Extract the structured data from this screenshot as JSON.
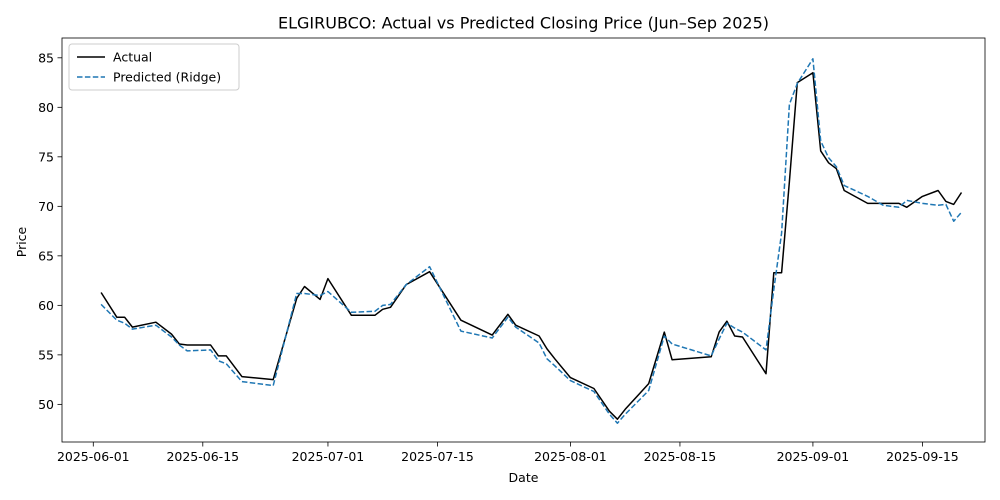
{
  "chart_data": {
    "type": "line",
    "title": "ELGIRUBCO: Actual vs Predicted Closing Price (Jun–Sep 2025)",
    "xlabel": "Date",
    "ylabel": "Price",
    "x_range": [
      "2025-05-28",
      "2025-09-23"
    ],
    "ylim": [
      46.2,
      87.0
    ],
    "x_ticks": [
      "2025-06-01",
      "2025-06-15",
      "2025-07-01",
      "2025-07-15",
      "2025-08-01",
      "2025-08-15",
      "2025-09-01",
      "2025-09-15"
    ],
    "y_ticks": [
      50,
      55,
      60,
      65,
      70,
      75,
      80,
      85
    ],
    "grid": false,
    "legend_position": "top-left",
    "series": [
      {
        "name": "Actual",
        "color": "#000000",
        "style": "solid",
        "points": [
          [
            "2025-06-02",
            61.3
          ],
          [
            "2025-06-04",
            58.8
          ],
          [
            "2025-06-05",
            58.8
          ],
          [
            "2025-06-06",
            57.8
          ],
          [
            "2025-06-09",
            58.3
          ],
          [
            "2025-06-11",
            57.1
          ],
          [
            "2025-06-12",
            56.1
          ],
          [
            "2025-06-13",
            56.0
          ],
          [
            "2025-06-16",
            56.0
          ],
          [
            "2025-06-17",
            54.9
          ],
          [
            "2025-06-18",
            54.9
          ],
          [
            "2025-06-20",
            52.8
          ],
          [
            "2025-06-24",
            52.5
          ],
          [
            "2025-06-27",
            60.7
          ],
          [
            "2025-06-28",
            61.9
          ],
          [
            "2025-06-30",
            60.6
          ],
          [
            "2025-07-01",
            62.7
          ],
          [
            "2025-07-04",
            59.0
          ],
          [
            "2025-07-07",
            59.0
          ],
          [
            "2025-07-08",
            59.6
          ],
          [
            "2025-07-09",
            59.8
          ],
          [
            "2025-07-11",
            62.1
          ],
          [
            "2025-07-14",
            63.4
          ],
          [
            "2025-07-18",
            58.5
          ],
          [
            "2025-07-22",
            57.0
          ],
          [
            "2025-07-24",
            59.1
          ],
          [
            "2025-07-25",
            58.0
          ],
          [
            "2025-07-28",
            56.9
          ],
          [
            "2025-07-29",
            55.6
          ],
          [
            "2025-07-30",
            54.6
          ],
          [
            "2025-08-01",
            52.7
          ],
          [
            "2025-08-04",
            51.6
          ],
          [
            "2025-08-06",
            49.3
          ],
          [
            "2025-08-07",
            48.5
          ],
          [
            "2025-08-08",
            49.5
          ],
          [
            "2025-08-11",
            52.1
          ],
          [
            "2025-08-13",
            57.3
          ],
          [
            "2025-08-14",
            54.5
          ],
          [
            "2025-08-19",
            54.8
          ],
          [
            "2025-08-20",
            57.3
          ],
          [
            "2025-08-21",
            58.4
          ],
          [
            "2025-08-22",
            56.9
          ],
          [
            "2025-08-23",
            56.8
          ],
          [
            "2025-08-26",
            53.1
          ],
          [
            "2025-08-27",
            63.3
          ],
          [
            "2025-08-28",
            63.3
          ],
          [
            "2025-08-29",
            72.5
          ],
          [
            "2025-08-30",
            82.5
          ],
          [
            "2025-09-01",
            83.5
          ],
          [
            "2025-09-02",
            75.6
          ],
          [
            "2025-09-03",
            74.4
          ],
          [
            "2025-09-04",
            73.8
          ],
          [
            "2025-09-05",
            71.6
          ],
          [
            "2025-09-08",
            70.3
          ],
          [
            "2025-09-10",
            70.3
          ],
          [
            "2025-09-12",
            70.3
          ],
          [
            "2025-09-13",
            69.9
          ],
          [
            "2025-09-15",
            71.0
          ],
          [
            "2025-09-17",
            71.6
          ],
          [
            "2025-09-18",
            70.5
          ],
          [
            "2025-09-19",
            70.2
          ],
          [
            "2025-09-20",
            71.4
          ]
        ]
      },
      {
        "name": "Predicted (Ridge)",
        "color": "#1f77b4",
        "style": "dashed",
        "points": [
          [
            "2025-06-02",
            60.1
          ],
          [
            "2025-06-04",
            58.5
          ],
          [
            "2025-06-05",
            58.2
          ],
          [
            "2025-06-06",
            57.6
          ],
          [
            "2025-06-09",
            58.0
          ],
          [
            "2025-06-11",
            56.8
          ],
          [
            "2025-06-12",
            56.0
          ],
          [
            "2025-06-13",
            55.4
          ],
          [
            "2025-06-16",
            55.5
          ],
          [
            "2025-06-17",
            54.4
          ],
          [
            "2025-06-18",
            54.1
          ],
          [
            "2025-06-20",
            52.3
          ],
          [
            "2025-06-24",
            51.9
          ],
          [
            "2025-06-27",
            61.2
          ],
          [
            "2025-06-28",
            61.2
          ],
          [
            "2025-06-30",
            61.0
          ],
          [
            "2025-07-01",
            61.4
          ],
          [
            "2025-07-04",
            59.3
          ],
          [
            "2025-07-07",
            59.4
          ],
          [
            "2025-07-08",
            60.0
          ],
          [
            "2025-07-09",
            60.1
          ],
          [
            "2025-07-11",
            62.1
          ],
          [
            "2025-07-14",
            63.9
          ],
          [
            "2025-07-18",
            57.4
          ],
          [
            "2025-07-22",
            56.7
          ],
          [
            "2025-07-24",
            58.8
          ],
          [
            "2025-07-25",
            57.8
          ],
          [
            "2025-07-28",
            56.2
          ],
          [
            "2025-07-29",
            54.6
          ],
          [
            "2025-07-30",
            53.9
          ],
          [
            "2025-08-01",
            52.4
          ],
          [
            "2025-08-04",
            51.3
          ],
          [
            "2025-08-06",
            49.0
          ],
          [
            "2025-08-07",
            48.1
          ],
          [
            "2025-08-08",
            49.0
          ],
          [
            "2025-08-11",
            51.4
          ],
          [
            "2025-08-13",
            56.9
          ],
          [
            "2025-08-14",
            56.1
          ],
          [
            "2025-08-19",
            54.9
          ],
          [
            "2025-08-20",
            56.6
          ],
          [
            "2025-08-21",
            58.2
          ],
          [
            "2025-08-22",
            57.7
          ],
          [
            "2025-08-23",
            57.3
          ],
          [
            "2025-08-26",
            55.5
          ],
          [
            "2025-08-27",
            61.6
          ],
          [
            "2025-08-28",
            67.3
          ],
          [
            "2025-08-29",
            80.3
          ],
          [
            "2025-08-30",
            82.4
          ],
          [
            "2025-09-01",
            84.9
          ],
          [
            "2025-09-02",
            76.6
          ],
          [
            "2025-09-03",
            74.9
          ],
          [
            "2025-09-04",
            74.0
          ],
          [
            "2025-09-05",
            72.1
          ],
          [
            "2025-09-08",
            71.0
          ],
          [
            "2025-09-10",
            70.1
          ],
          [
            "2025-09-12",
            69.9
          ],
          [
            "2025-09-13",
            70.6
          ],
          [
            "2025-09-15",
            70.3
          ],
          [
            "2025-09-17",
            70.1
          ],
          [
            "2025-09-18",
            70.2
          ],
          [
            "2025-09-19",
            68.5
          ],
          [
            "2025-09-20",
            69.4
          ]
        ]
      }
    ]
  }
}
